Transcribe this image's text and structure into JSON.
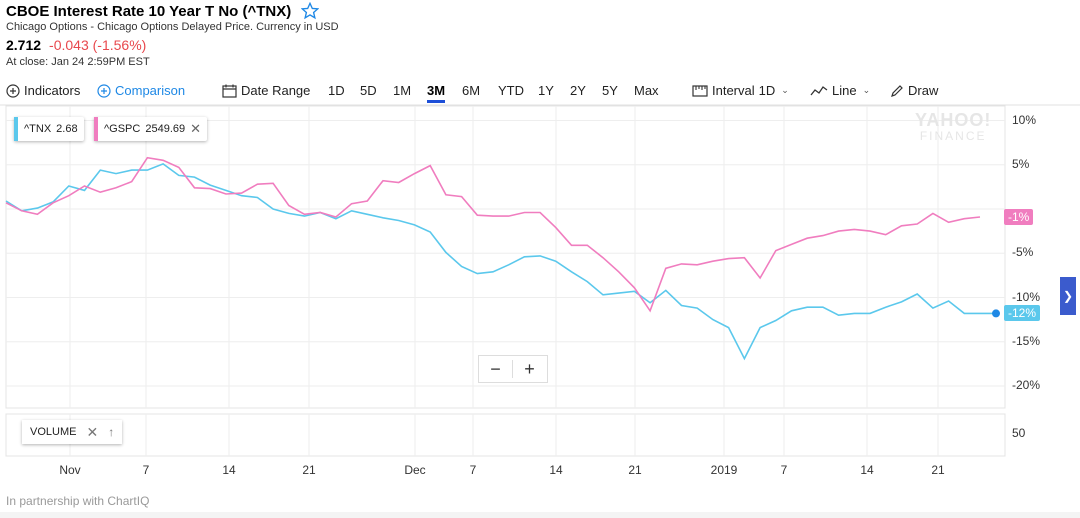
{
  "quote": {
    "title": "CBOE Interest Rate 10 Year T No (^TNX)",
    "subtitle": "Chicago Options - Chicago Options Delayed Price. Currency in USD",
    "price": "2.712",
    "change": "-0.043 (-1.56%)",
    "close_note": "At close: Jan 24 2:59PM EST"
  },
  "toolbar": {
    "indicators": "Indicators",
    "comparison": "Comparison",
    "date_range": "Date Range",
    "ranges": [
      "1D",
      "5D",
      "1M",
      "3M",
      "6M",
      "YTD",
      "1Y",
      "2Y",
      "5Y",
      "Max"
    ],
    "active_range": "3M",
    "interval": "Interval",
    "interval_value": "1D",
    "chart_type": "Line",
    "draw": "Draw"
  },
  "watermark": {
    "line1": "YAHOO!",
    "line2": "FINANCE"
  },
  "legend": [
    {
      "symbol": "^TNX",
      "value": "2.68",
      "color": "#5bc8ec"
    },
    {
      "symbol": "^GSPC",
      "value": "2549.69",
      "color": "#f07dbf"
    }
  ],
  "zoom": {
    "minus": "−",
    "plus": "+"
  },
  "volume": {
    "label": "VOLUME",
    "tick": "50"
  },
  "badges": {
    "gspc": "-1%",
    "tnx": "-12%"
  },
  "footer": "In partnership with ChartIQ",
  "colors": {
    "tnx": "#5bc8ec",
    "gspc": "#f07dbf",
    "accent": "#1e88e5",
    "active_underline": "#1d4fd8"
  },
  "chart_data": {
    "type": "line",
    "y_unit": "% change",
    "ylim": [
      -22,
      11
    ],
    "y_ticks": [
      "10%",
      "5%",
      "0%",
      "-5%",
      "-10%",
      "-15%",
      "-20%"
    ],
    "x_ticks": [
      "Nov",
      "7",
      "14",
      "21",
      "Dec",
      "7",
      "14",
      "21",
      "2019",
      "7",
      "14",
      "21"
    ],
    "grid": true,
    "series": [
      {
        "name": "^TNX",
        "values": [
          0.9,
          -0.2,
          0.1,
          0.8,
          2.6,
          2.1,
          4.4,
          4.0,
          4.4,
          4.4,
          5.1,
          3.8,
          3.6,
          2.7,
          2.1,
          1.5,
          1.3,
          0.0,
          -0.5,
          -0.8,
          -0.4,
          -1.1,
          -0.2,
          -0.6,
          -1.0,
          -1.3,
          -1.8,
          -2.6,
          -4.9,
          -6.5,
          -7.3,
          -7.1,
          -6.3,
          -5.4,
          -5.3,
          -5.9,
          -7.1,
          -8.2,
          -9.7,
          -9.5,
          -9.3,
          -10.6,
          -9.2,
          -10.9,
          -11.2,
          -12.5,
          -13.4,
          -16.9,
          -13.4,
          -12.6,
          -11.5,
          -11.1,
          -11.1,
          -12.0,
          -11.8,
          -11.8,
          -11.1,
          -10.5,
          -9.6,
          -11.2,
          -10.4,
          -11.8,
          -11.8
        ]
      },
      {
        "name": "^GSPC",
        "values": [
          0.7,
          -0.2,
          -0.6,
          0.7,
          1.5,
          2.6,
          1.9,
          2.4,
          3.1,
          5.8,
          5.5,
          4.7,
          2.4,
          2.3,
          1.7,
          1.8,
          2.8,
          2.9,
          0.4,
          -0.6,
          -0.4,
          -0.9,
          0.6,
          0.9,
          3.2,
          3.0,
          4.0,
          4.9,
          1.6,
          1.4,
          -0.7,
          -0.8,
          -0.8,
          -0.4,
          -0.4,
          -2.1,
          -4.1,
          -4.1,
          -5.5,
          -7.1,
          -8.9,
          -11.5,
          -6.7,
          -6.2,
          -6.3,
          -5.9,
          -5.6,
          -5.5,
          -7.8,
          -4.7,
          -4.0,
          -3.3,
          -3.0,
          -2.5,
          -2.3,
          -2.5,
          -2.9,
          -1.9,
          -1.7,
          -0.5,
          -1.5,
          -1.1,
          -0.9
        ]
      }
    ]
  }
}
